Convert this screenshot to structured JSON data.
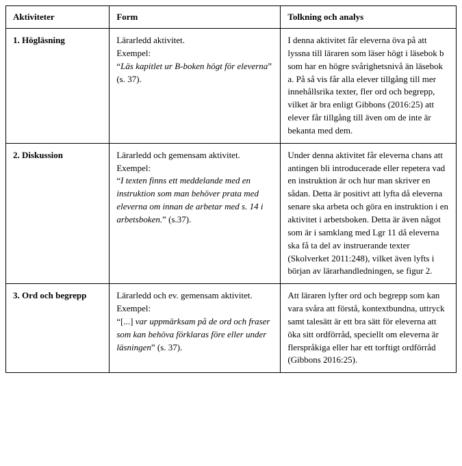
{
  "headers": {
    "col1": "Aktiviteter",
    "col2": "Form",
    "col3": "Tolkning och analys"
  },
  "rows": [
    {
      "activity": "1. Högläsning",
      "form": {
        "lead": "Lärarledd aktivitet.",
        "example_label": "Exempel:",
        "quote_open": "“",
        "quote_italic": "Läs kapitlet ur B-boken högt för eleverna",
        "quote_close": "” (s. 37)."
      },
      "analysis": "I denna aktivitet får eleverna öva på att lyssna till läraren som läser högt i läsebok b som har en högre svårighetsnivå än läsebok a. På så vis får alla elever tillgång till mer innehållsrika texter, fler ord och begrepp, vilket är bra enligt Gibbons (2016:25) att elever får tillgång till även om de inte är bekanta med dem."
    },
    {
      "activity": "2. Diskussion",
      "form": {
        "lead": "Lärarledd och gemensam aktivitet.",
        "example_label": "Exempel:",
        "quote_open": "“",
        "quote_italic": "I texten finns ett meddelande med en instruktion som man behöver prata med eleverna om innan de arbetar med s. 14 i arbetsboken.",
        "quote_close": "” (s.37)."
      },
      "analysis": "Under denna aktivitet får eleverna chans att antingen bli introducerade eller repetera vad en instruktion är och hur man skriver en sådan. Detta är positivt att lyfta då eleverna senare ska arbeta och göra en instruktion i en aktivitet i arbetsboken. Detta är även något som är i samklang med Lgr 11 då eleverna ska få ta del av instruerande texter (Skolverket 2011:248), vilket även lyfts i början av lärarhandledningen, se figur 2."
    },
    {
      "activity": "3. Ord och begrepp",
      "form": {
        "lead": "Lärarledd och ev. gemensam aktivitet.",
        "example_label": "Exempel:",
        "quote_open": "“[...] ",
        "quote_italic": "var uppmärksam på de ord och fraser som kan behöva förklaras före eller under läsningen",
        "quote_close": "” (s. 37)."
      },
      "analysis": "Att läraren lyfter ord och begrepp som kan vara svåra att förstå, kontextbundna, uttryck samt talesätt är ett bra sätt för eleverna att öka sitt ordförråd, speciellt om eleverna är flerspråkiga eller har ett torftigt ordförråd (Gibbons 2016:25)."
    }
  ]
}
